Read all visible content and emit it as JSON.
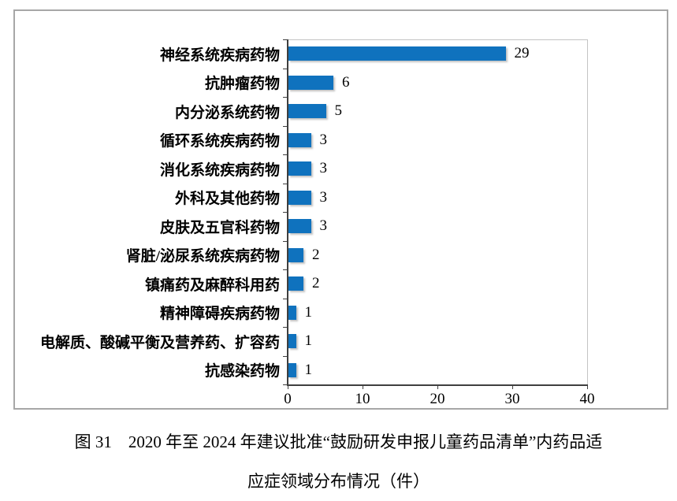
{
  "figure": {
    "caption_line1": "图 31　2020 年至 2024 年建议批准“鼓励研发申报儿童药品清单”内药品适",
    "caption_line2": "应症领域分布情况（件）"
  },
  "chart_data": {
    "type": "bar",
    "orientation": "horizontal",
    "title": "",
    "xlabel": "",
    "ylabel": "",
    "categories": [
      "神经系统疾病药物",
      "抗肿瘤药物",
      "内分泌系统药物",
      "循环系统疾病药物",
      "消化系统疾病药物",
      "外科及其他药物",
      "皮肤及五官科药物",
      "肾脏/泌尿系统疾病药物",
      "镇痛药及麻醉科用药",
      "精神障碍疾病药物",
      "电解质、酸碱平衡及营养药、扩容药",
      "抗感染药物"
    ],
    "values": [
      29,
      6,
      5,
      3,
      3,
      3,
      3,
      2,
      2,
      1,
      1,
      1
    ],
    "data_labels_shown": true,
    "xlim": [
      0,
      40
    ],
    "x_ticks": [
      0,
      10,
      20,
      30,
      40
    ],
    "grid": "off",
    "legend": "none",
    "bar_color": "#0f72be",
    "axis_color": "#3f3f3f",
    "frame_color": "#c3c3c3",
    "outer_border_color": "#a7a7a7"
  }
}
